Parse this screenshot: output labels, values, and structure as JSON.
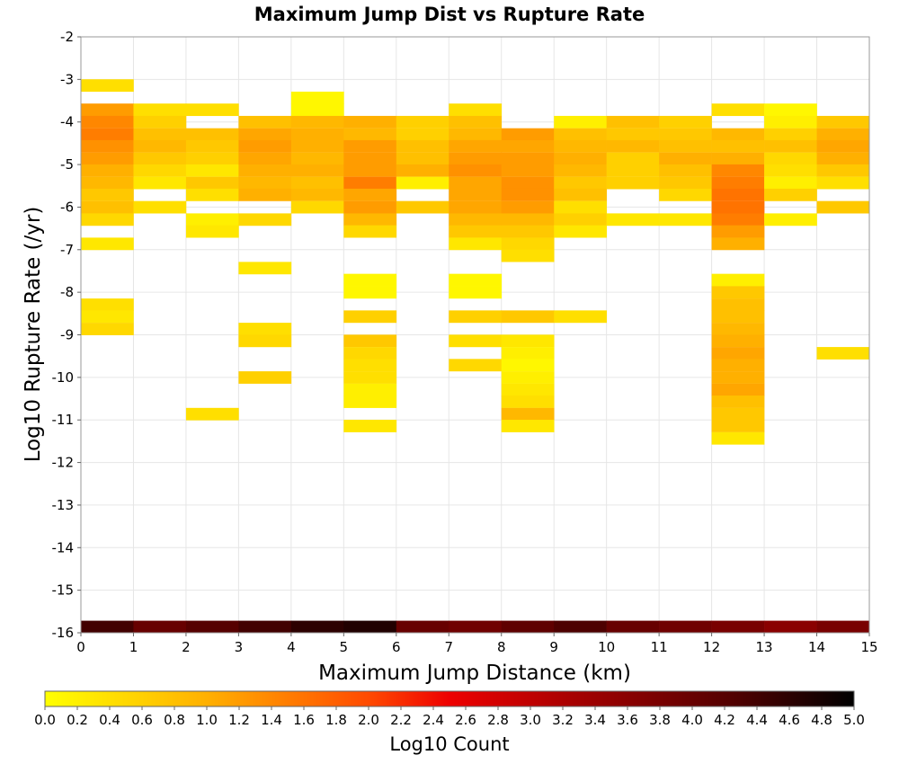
{
  "chart_data": {
    "type": "heatmap",
    "title": "Maximum Jump Dist vs Rupture Rate",
    "xlabel": "Maximum Jump Distance (km)",
    "ylabel": "Log10 Rupture Rate (/yr)",
    "xlim": [
      0,
      15
    ],
    "ylim": [
      -16,
      -2
    ],
    "x_ticks": [
      "0",
      "1",
      "2",
      "3",
      "4",
      "5",
      "6",
      "7",
      "8",
      "9",
      "10",
      "11",
      "12",
      "13",
      "14",
      "15"
    ],
    "y_ticks": [
      "-2",
      "-3",
      "-4",
      "-5",
      "-6",
      "-7",
      "-8",
      "-9",
      "-10",
      "-11",
      "-12",
      "-13",
      "-14",
      "-15",
      "-16"
    ],
    "x_bin_width": 1,
    "y_bin_height": 0.286,
    "grid": true,
    "colorbar": {
      "label": "Log10 Count",
      "min": 0,
      "max": 5,
      "ticks": [
        "0.0",
        "0.2",
        "0.4",
        "0.6",
        "0.8",
        "1.0",
        "1.2",
        "1.4",
        "1.6",
        "1.8",
        "2.0",
        "2.2",
        "2.4",
        "2.6",
        "2.8",
        "3.0",
        "3.2",
        "3.4",
        "3.6",
        "3.8",
        "4.0",
        "4.2",
        "4.4",
        "4.6",
        "4.8",
        "5.0"
      ],
      "position": "bottom"
    },
    "cells": [
      [
        0.5,
        -3.14,
        0.4
      ],
      [
        0.5,
        -3.71,
        1.2
      ],
      [
        0.5,
        -4.0,
        1.4
      ],
      [
        0.5,
        -4.29,
        1.5
      ],
      [
        0.5,
        -4.57,
        1.3
      ],
      [
        0.5,
        -4.86,
        1.2
      ],
      [
        0.5,
        -5.14,
        1.0
      ],
      [
        0.5,
        -5.43,
        0.9
      ],
      [
        0.5,
        -5.71,
        0.7
      ],
      [
        0.5,
        -6.0,
        0.8
      ],
      [
        0.5,
        -6.29,
        0.5
      ],
      [
        0.5,
        -6.86,
        0.3
      ],
      [
        0.5,
        -8.29,
        0.4
      ],
      [
        0.5,
        -8.57,
        0.3
      ],
      [
        0.5,
        -8.86,
        0.5
      ],
      [
        1.5,
        -3.71,
        0.4
      ],
      [
        1.5,
        -4.0,
        0.6
      ],
      [
        1.5,
        -4.29,
        0.8
      ],
      [
        1.5,
        -4.57,
        0.9
      ],
      [
        1.5,
        -4.86,
        0.7
      ],
      [
        1.5,
        -5.14,
        0.5
      ],
      [
        1.5,
        -5.43,
        0.3
      ],
      [
        1.5,
        -6.0,
        0.4
      ],
      [
        2.5,
        -3.71,
        0.4
      ],
      [
        2.5,
        -4.29,
        0.8
      ],
      [
        2.5,
        -4.57,
        0.7
      ],
      [
        2.5,
        -4.86,
        0.6
      ],
      [
        2.5,
        -5.14,
        0.3
      ],
      [
        2.5,
        -5.43,
        0.7
      ],
      [
        2.5,
        -5.71,
        0.4
      ],
      [
        2.5,
        -6.29,
        0.2
      ],
      [
        2.5,
        -6.57,
        0.3
      ],
      [
        2.5,
        -10.86,
        0.4
      ],
      [
        3.5,
        -4.0,
        0.8
      ],
      [
        3.5,
        -4.29,
        1.1
      ],
      [
        3.5,
        -4.57,
        1.2
      ],
      [
        3.5,
        -4.86,
        1.1
      ],
      [
        3.5,
        -5.14,
        1.0
      ],
      [
        3.5,
        -5.43,
        0.9
      ],
      [
        3.5,
        -5.71,
        1.0
      ],
      [
        3.5,
        -6.29,
        0.5
      ],
      [
        3.5,
        -7.43,
        0.3
      ],
      [
        3.5,
        -8.86,
        0.4
      ],
      [
        3.5,
        -9.14,
        0.5
      ],
      [
        3.5,
        -10.0,
        0.6
      ],
      [
        4.5,
        -3.43,
        0.1
      ],
      [
        4.5,
        -3.71,
        0.1
      ],
      [
        4.5,
        -4.0,
        0.9
      ],
      [
        4.5,
        -4.29,
        1.0
      ],
      [
        4.5,
        -4.57,
        1.0
      ],
      [
        4.5,
        -4.86,
        0.9
      ],
      [
        4.5,
        -5.14,
        1.0
      ],
      [
        4.5,
        -5.43,
        0.8
      ],
      [
        4.5,
        -5.71,
        0.9
      ],
      [
        4.5,
        -6.0,
        0.5
      ],
      [
        5.5,
        -4.0,
        1.0
      ],
      [
        5.5,
        -4.29,
        0.9
      ],
      [
        5.5,
        -4.57,
        1.2
      ],
      [
        5.5,
        -4.86,
        1.2
      ],
      [
        5.5,
        -5.14,
        1.2
      ],
      [
        5.5,
        -5.43,
        1.5
      ],
      [
        5.5,
        -5.71,
        1.1
      ],
      [
        5.5,
        -6.0,
        1.2
      ],
      [
        5.5,
        -6.29,
        0.9
      ],
      [
        5.5,
        -6.57,
        0.5
      ],
      [
        5.5,
        -7.71,
        0.1
      ],
      [
        5.5,
        -8.0,
        0.1
      ],
      [
        5.5,
        -8.57,
        0.6
      ],
      [
        5.5,
        -9.14,
        0.7
      ],
      [
        5.5,
        -9.43,
        0.5
      ],
      [
        5.5,
        -9.71,
        0.4
      ],
      [
        5.5,
        -10.0,
        0.4
      ],
      [
        5.5,
        -10.29,
        0.2
      ],
      [
        5.5,
        -10.57,
        0.2
      ],
      [
        5.5,
        -11.14,
        0.3
      ],
      [
        6.5,
        -4.0,
        0.6
      ],
      [
        6.5,
        -4.29,
        0.6
      ],
      [
        6.5,
        -4.57,
        0.8
      ],
      [
        6.5,
        -4.86,
        0.8
      ],
      [
        6.5,
        -5.14,
        1.0
      ],
      [
        6.5,
        -5.43,
        0.2
      ],
      [
        6.5,
        -6.0,
        0.7
      ],
      [
        7.5,
        -3.71,
        0.4
      ],
      [
        7.5,
        -4.0,
        0.8
      ],
      [
        7.5,
        -4.29,
        0.9
      ],
      [
        7.5,
        -4.57,
        1.1
      ],
      [
        7.5,
        -4.86,
        1.2
      ],
      [
        7.5,
        -5.14,
        1.3
      ],
      [
        7.5,
        -5.43,
        1.1
      ],
      [
        7.5,
        -5.71,
        1.1
      ],
      [
        7.5,
        -6.0,
        1.1
      ],
      [
        7.5,
        -6.29,
        0.9
      ],
      [
        7.5,
        -6.57,
        0.7
      ],
      [
        7.5,
        -6.86,
        0.3
      ],
      [
        7.5,
        -7.71,
        0.1
      ],
      [
        7.5,
        -8.0,
        0.1
      ],
      [
        7.5,
        -8.57,
        0.6
      ],
      [
        7.5,
        -9.14,
        0.4
      ],
      [
        7.5,
        -9.71,
        0.5
      ],
      [
        8.5,
        -4.29,
        1.2
      ],
      [
        8.5,
        -4.57,
        1.1
      ],
      [
        8.5,
        -4.86,
        1.2
      ],
      [
        8.5,
        -5.14,
        1.2
      ],
      [
        8.5,
        -5.43,
        1.3
      ],
      [
        8.5,
        -5.71,
        1.3
      ],
      [
        8.5,
        -6.0,
        1.2
      ],
      [
        8.5,
        -6.29,
        0.9
      ],
      [
        8.5,
        -6.57,
        0.7
      ],
      [
        8.5,
        -6.86,
        0.5
      ],
      [
        8.5,
        -7.14,
        0.4
      ],
      [
        8.5,
        -8.57,
        0.7
      ],
      [
        8.5,
        -9.14,
        0.3
      ],
      [
        8.5,
        -9.43,
        0.2
      ],
      [
        8.5,
        -9.71,
        0.1
      ],
      [
        8.5,
        -10.0,
        0.2
      ],
      [
        8.5,
        -10.29,
        0.3
      ],
      [
        8.5,
        -10.57,
        0.4
      ],
      [
        8.5,
        -10.86,
        0.9
      ],
      [
        8.5,
        -11.14,
        0.3
      ],
      [
        9.5,
        -4.0,
        0.2
      ],
      [
        9.5,
        -4.29,
        0.8
      ],
      [
        9.5,
        -4.57,
        0.9
      ],
      [
        9.5,
        -4.86,
        1.0
      ],
      [
        9.5,
        -5.14,
        0.9
      ],
      [
        9.5,
        -5.43,
        0.7
      ],
      [
        9.5,
        -5.71,
        0.8
      ],
      [
        9.5,
        -6.0,
        0.4
      ],
      [
        9.5,
        -6.29,
        0.6
      ],
      [
        9.5,
        -6.57,
        0.3
      ],
      [
        9.5,
        -8.57,
        0.4
      ],
      [
        10.5,
        -4.0,
        0.8
      ],
      [
        10.5,
        -4.29,
        0.7
      ],
      [
        10.5,
        -4.57,
        0.9
      ],
      [
        10.5,
        -4.86,
        0.6
      ],
      [
        10.5,
        -5.14,
        0.6
      ],
      [
        10.5,
        -5.43,
        0.6
      ],
      [
        10.5,
        -6.29,
        0.3
      ],
      [
        11.5,
        -4.0,
        0.6
      ],
      [
        11.5,
        -4.29,
        0.7
      ],
      [
        11.5,
        -4.57,
        0.8
      ],
      [
        11.5,
        -4.86,
        1.0
      ],
      [
        11.5,
        -5.14,
        0.8
      ],
      [
        11.5,
        -5.43,
        0.7
      ],
      [
        11.5,
        -5.71,
        0.5
      ],
      [
        11.5,
        -6.29,
        0.3
      ],
      [
        12.5,
        -3.71,
        0.4
      ],
      [
        12.5,
        -4.29,
        0.9
      ],
      [
        12.5,
        -4.57,
        0.8
      ],
      [
        12.5,
        -4.86,
        1.0
      ],
      [
        12.5,
        -5.14,
        1.4
      ],
      [
        12.5,
        -5.43,
        1.5
      ],
      [
        12.5,
        -5.71,
        1.6
      ],
      [
        12.5,
        -6.0,
        1.6
      ],
      [
        12.5,
        -6.29,
        1.5
      ],
      [
        12.5,
        -6.57,
        1.2
      ],
      [
        12.5,
        -6.86,
        1.0
      ],
      [
        12.5,
        -7.71,
        0.2
      ],
      [
        12.5,
        -8.0,
        0.7
      ],
      [
        12.5,
        -8.29,
        0.8
      ],
      [
        12.5,
        -8.57,
        0.8
      ],
      [
        12.5,
        -8.86,
        0.9
      ],
      [
        12.5,
        -9.14,
        1.0
      ],
      [
        12.5,
        -9.43,
        1.1
      ],
      [
        12.5,
        -9.71,
        1.0
      ],
      [
        12.5,
        -10.0,
        1.0
      ],
      [
        12.5,
        -10.29,
        1.1
      ],
      [
        12.5,
        -10.57,
        0.8
      ],
      [
        12.5,
        -10.86,
        0.7
      ],
      [
        12.5,
        -11.14,
        0.7
      ],
      [
        12.5,
        -11.43,
        0.3
      ],
      [
        13.5,
        -3.71,
        0.1
      ],
      [
        13.5,
        -4.0,
        0.2
      ],
      [
        13.5,
        -4.29,
        0.6
      ],
      [
        13.5,
        -4.57,
        0.8
      ],
      [
        13.5,
        -4.86,
        0.5
      ],
      [
        13.5,
        -5.14,
        0.4
      ],
      [
        13.5,
        -5.43,
        0.2
      ],
      [
        13.5,
        -5.71,
        0.6
      ],
      [
        13.5,
        -6.29,
        0.2
      ],
      [
        14.5,
        -4.0,
        0.7
      ],
      [
        14.5,
        -4.29,
        1.0
      ],
      [
        14.5,
        -4.57,
        1.1
      ],
      [
        14.5,
        -4.86,
        1.0
      ],
      [
        14.5,
        -5.14,
        0.7
      ],
      [
        14.5,
        -5.43,
        0.4
      ],
      [
        14.5,
        -6.0,
        0.7
      ],
      [
        14.5,
        -9.43,
        0.4
      ],
      [
        0.5,
        -15.86,
        4.4
      ],
      [
        1.5,
        -15.86,
        4.0
      ],
      [
        2.5,
        -15.86,
        4.2
      ],
      [
        3.5,
        -15.86,
        4.4
      ],
      [
        4.5,
        -15.86,
        4.6
      ],
      [
        5.5,
        -15.86,
        4.7
      ],
      [
        6.5,
        -15.86,
        4.0
      ],
      [
        7.5,
        -15.86,
        3.9
      ],
      [
        8.5,
        -15.86,
        4.1
      ],
      [
        9.5,
        -15.86,
        4.3
      ],
      [
        10.5,
        -15.86,
        4.0
      ],
      [
        11.5,
        -15.86,
        3.9
      ],
      [
        12.5,
        -15.86,
        3.8
      ],
      [
        13.5,
        -15.86,
        3.6
      ],
      [
        14.5,
        -15.86,
        3.8
      ]
    ]
  }
}
